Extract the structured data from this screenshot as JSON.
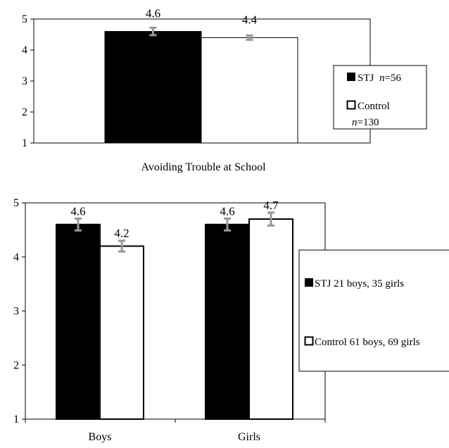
{
  "chart_data": [
    {
      "type": "bar",
      "categories": [
        ""
      ],
      "series": [
        {
          "name": "STJ",
          "name_suffix": "n=56",
          "values": [
            4.6
          ],
          "error": [
            0.12
          ],
          "fill": "#000000"
        },
        {
          "name": "Control",
          "name_suffix": "n=130",
          "values": [
            4.4
          ],
          "error": [
            0.07
          ],
          "fill": "#ffffff"
        }
      ],
      "data_labels": [
        "4.6",
        "4.4"
      ],
      "xlabel": "Avoiding Trouble at School",
      "ylim": [
        1,
        5
      ],
      "yticks": [
        "1",
        "2",
        "3",
        "4",
        "5"
      ],
      "legend_position": "right",
      "legend": [
        {
          "label": "STJ",
          "italic": "n",
          "rest": "=56"
        },
        {
          "label": "Control",
          "italic": "n",
          "rest": "=130"
        }
      ],
      "colors": {
        "stj": "#000000",
        "control": "#ffffff",
        "error_bar": "#999999"
      }
    },
    {
      "type": "bar",
      "categories": [
        "Boys",
        "Girls"
      ],
      "series": [
        {
          "name": "STJ 21 boys, 35 girls",
          "values": [
            4.6,
            4.6
          ],
          "error": [
            0.11,
            0.11
          ],
          "fill": "#000000"
        },
        {
          "name": "Control 61 boys, 69 girls",
          "values": [
            4.2,
            4.7
          ],
          "error": [
            0.1,
            0.12
          ],
          "fill": "#ffffff"
        }
      ],
      "data_labels": [
        [
          "4.6",
          "4.2"
        ],
        [
          "4.6",
          "4.7"
        ]
      ],
      "ylim": [
        1,
        5
      ],
      "yticks": [
        "1",
        "2",
        "3",
        "4",
        "5"
      ],
      "legend_position": "right",
      "legend": [
        {
          "label": "STJ 21 boys, 35 girls"
        },
        {
          "label": "Control 61 boys, 69 girls"
        }
      ],
      "colors": {
        "stj": "#000000",
        "control": "#ffffff",
        "error_bar": "#999999"
      }
    }
  ]
}
